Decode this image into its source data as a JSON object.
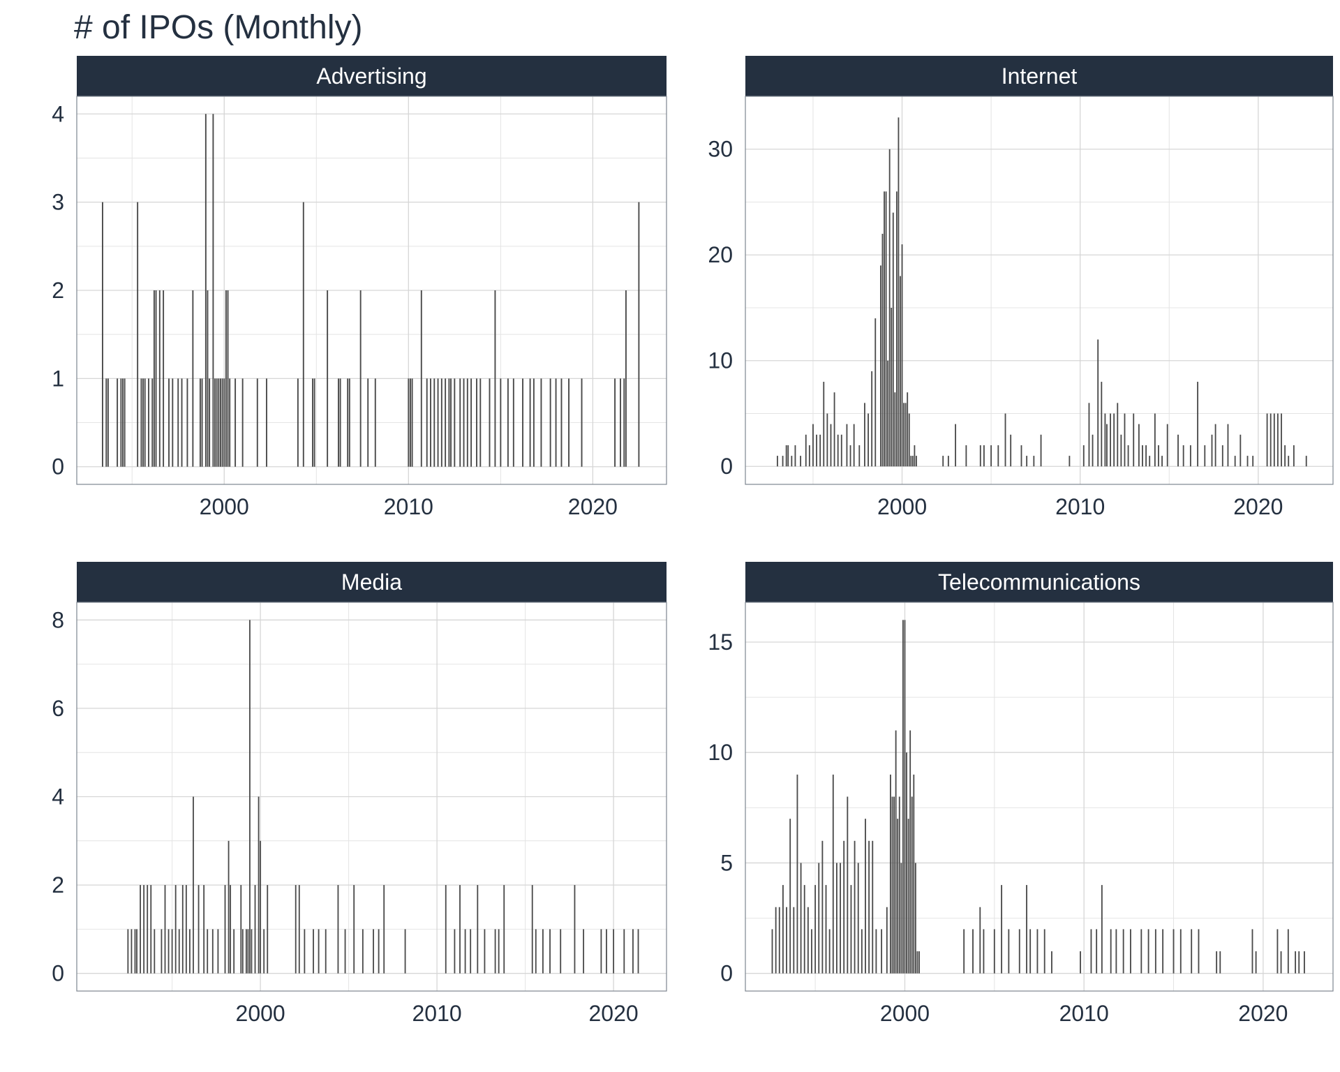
{
  "title": "# of IPOs (Monthly)",
  "colors": {
    "strip": "#243040",
    "strip_text": "#ffffff",
    "bar": "#4a4a4a",
    "grid": "#d6d6d6",
    "text": "#243040"
  },
  "chart_data": [
    {
      "type": "bar",
      "facet": "Advertising",
      "xlabel": "",
      "ylabel": "",
      "xlim": [
        1992.0,
        2024.0
      ],
      "ylim": [
        -0.2,
        4.2
      ],
      "xticks": [
        2000,
        2010,
        2020
      ],
      "yticks": [
        0,
        1,
        2,
        3,
        4
      ],
      "x": [
        1993.4,
        1993.6,
        1993.7,
        1994.2,
        1994.4,
        1994.5,
        1994.6,
        1995.3,
        1995.5,
        1995.6,
        1995.7,
        1995.9,
        1996.1,
        1996.2,
        1996.3,
        1996.5,
        1996.7,
        1997.0,
        1997.2,
        1997.5,
        1997.7,
        1998.0,
        1998.3,
        1998.7,
        1998.8,
        1999.0,
        1999.1,
        1999.2,
        1999.4,
        1999.5,
        1999.6,
        1999.7,
        1999.8,
        1999.9,
        2000.0,
        2000.1,
        2000.2,
        2000.3,
        2000.6,
        2001.0,
        2001.8,
        2002.3,
        2004.0,
        2004.3,
        2004.8,
        2004.9,
        2005.6,
        2006.2,
        2006.3,
        2006.7,
        2006.8,
        2007.4,
        2007.8,
        2008.2,
        2010.0,
        2010.1,
        2010.2,
        2010.7,
        2011.0,
        2011.2,
        2011.4,
        2011.6,
        2011.8,
        2012.0,
        2012.2,
        2012.3,
        2012.5,
        2012.8,
        2013.0,
        2013.2,
        2013.4,
        2013.7,
        2013.9,
        2014.4,
        2014.7,
        2015.0,
        2015.4,
        2015.7,
        2016.2,
        2016.6,
        2016.8,
        2017.2,
        2017.7,
        2018.0,
        2018.3,
        2018.7,
        2019.4,
        2021.2,
        2021.5,
        2021.7,
        2021.8,
        2022.5
      ],
      "values": [
        3,
        1,
        1,
        1,
        1,
        1,
        1,
        3,
        1,
        1,
        1,
        1,
        1,
        2,
        2,
        2,
        2,
        1,
        1,
        1,
        1,
        1,
        2,
        1,
        1,
        4,
        2,
        1,
        4,
        1,
        1,
        1,
        1,
        1,
        1,
        2,
        2,
        1,
        1,
        1,
        1,
        1,
        1,
        3,
        1,
        1,
        2,
        1,
        1,
        1,
        1,
        2,
        1,
        1,
        1,
        1,
        1,
        2,
        1,
        1,
        1,
        1,
        1,
        1,
        1,
        1,
        1,
        1,
        1,
        1,
        1,
        1,
        1,
        1,
        2,
        1,
        1,
        1,
        1,
        1,
        1,
        1,
        1,
        1,
        1,
        1,
        1,
        1,
        1,
        1,
        2,
        3
      ]
    },
    {
      "type": "bar",
      "facet": "Internet",
      "xlabel": "",
      "ylabel": "",
      "xlim": [
        1991.2,
        2024.2
      ],
      "ylim": [
        -1.7,
        35.0
      ],
      "xticks": [
        2000,
        2010,
        2020
      ],
      "yticks": [
        0,
        10,
        20,
        30
      ],
      "x": [
        1993.0,
        1993.3,
        1993.5,
        1993.6,
        1993.8,
        1994.0,
        1994.3,
        1994.6,
        1994.8,
        1995.0,
        1995.2,
        1995.4,
        1995.6,
        1995.8,
        1996.0,
        1996.2,
        1996.4,
        1996.6,
        1996.9,
        1997.1,
        1997.3,
        1997.6,
        1997.9,
        1998.1,
        1998.3,
        1998.5,
        1998.8,
        1998.9,
        1999.0,
        1999.1,
        1999.2,
        1999.3,
        1999.4,
        1999.5,
        1999.6,
        1999.7,
        1999.8,
        1999.9,
        2000.0,
        2000.1,
        2000.2,
        2000.3,
        2000.4,
        2000.5,
        2000.6,
        2000.7,
        2000.8,
        2002.3,
        2002.6,
        2003.0,
        2003.6,
        2004.4,
        2004.6,
        2005.0,
        2005.4,
        2005.8,
        2006.1,
        2006.7,
        2007.0,
        2007.4,
        2007.8,
        2009.4,
        2010.2,
        2010.5,
        2010.7,
        2011.0,
        2011.2,
        2011.4,
        2011.5,
        2011.7,
        2011.9,
        2012.1,
        2012.3,
        2012.5,
        2012.7,
        2013.0,
        2013.3,
        2013.5,
        2013.7,
        2013.9,
        2014.2,
        2014.4,
        2014.6,
        2014.9,
        2015.5,
        2015.8,
        2016.2,
        2016.6,
        2017.0,
        2017.4,
        2017.6,
        2018.0,
        2018.3,
        2018.7,
        2019.0,
        2019.4,
        2019.7,
        2020.5,
        2020.7,
        2020.9,
        2021.1,
        2021.3,
        2021.5,
        2021.7,
        2022.0,
        2022.7
      ],
      "values": [
        1,
        1,
        2,
        2,
        1,
        2,
        1,
        3,
        2,
        4,
        3,
        3,
        8,
        5,
        4,
        7,
        3,
        3,
        4,
        2,
        4,
        2,
        6,
        5,
        9,
        14,
        19,
        22,
        26,
        26,
        10,
        30,
        15,
        24,
        7,
        26,
        33,
        18,
        21,
        6,
        6,
        7,
        5,
        1,
        1,
        2,
        1,
        1,
        1,
        4,
        2,
        2,
        2,
        2,
        2,
        5,
        3,
        2,
        1,
        1,
        3,
        1,
        2,
        6,
        3,
        12,
        8,
        5,
        4,
        5,
        5,
        6,
        3,
        5,
        2,
        5,
        4,
        2,
        2,
        1,
        5,
        2,
        1,
        4,
        3,
        2,
        2,
        8,
        2,
        3,
        4,
        2,
        4,
        1,
        3,
        1,
        1,
        5,
        5,
        5,
        5,
        5,
        2,
        1,
        2,
        1
      ]
    },
    {
      "type": "bar",
      "facet": "Media",
      "xlabel": "",
      "ylabel": "",
      "xlim": [
        1989.6,
        2023.0
      ],
      "ylim": [
        -0.4,
        8.4
      ],
      "xticks": [
        2000,
        2010,
        2020
      ],
      "yticks": [
        0,
        2,
        4,
        6,
        8
      ],
      "x": [
        1992.5,
        1992.7,
        1992.9,
        1993.0,
        1993.2,
        1993.4,
        1993.6,
        1993.8,
        1994.0,
        1994.4,
        1994.6,
        1994.8,
        1995.0,
        1995.2,
        1995.4,
        1995.6,
        1995.8,
        1996.0,
        1996.2,
        1996.5,
        1996.8,
        1997.0,
        1997.3,
        1997.6,
        1998.0,
        1998.2,
        1998.3,
        1998.5,
        1998.9,
        1999.0,
        1999.2,
        1999.3,
        1999.4,
        1999.5,
        1999.7,
        1999.9,
        2000.0,
        2000.2,
        2000.4,
        2002.0,
        2002.2,
        2002.5,
        2003.0,
        2003.3,
        2003.7,
        2004.4,
        2004.8,
        2005.3,
        2005.8,
        2006.4,
        2006.7,
        2007.0,
        2008.2,
        2010.5,
        2011.0,
        2011.3,
        2011.6,
        2011.9,
        2012.3,
        2012.7,
        2013.3,
        2013.5,
        2013.8,
        2015.4,
        2015.6,
        2016.0,
        2016.4,
        2017.0,
        2017.8,
        2018.3,
        2019.3,
        2019.6,
        2020.0,
        2020.6,
        2021.1,
        2021.4
      ],
      "values": [
        1,
        1,
        1,
        1,
        2,
        2,
        2,
        2,
        1,
        1,
        2,
        1,
        1,
        2,
        1,
        2,
        2,
        1,
        4,
        2,
        2,
        1,
        1,
        1,
        2,
        3,
        2,
        1,
        2,
        1,
        1,
        1,
        8,
        1,
        2,
        4,
        3,
        1,
        2,
        2,
        2,
        1,
        1,
        1,
        1,
        2,
        1,
        2,
        1,
        1,
        1,
        2,
        1,
        2,
        1,
        2,
        1,
        1,
        2,
        1,
        1,
        1,
        2,
        2,
        1,
        1,
        1,
        1,
        2,
        1,
        1,
        1,
        1,
        1,
        1,
        1
      ]
    },
    {
      "type": "bar",
      "facet": "Telecommunications",
      "xlabel": "",
      "ylabel": "",
      "xlim": [
        1991.1,
        2023.9
      ],
      "ylim": [
        -0.8,
        16.8
      ],
      "xticks": [
        2000,
        2010,
        2020
      ],
      "yticks": [
        0,
        5,
        10,
        15
      ],
      "x": [
        1992.6,
        1992.8,
        1993.0,
        1993.2,
        1993.4,
        1993.6,
        1993.8,
        1994.0,
        1994.2,
        1994.4,
        1994.6,
        1994.8,
        1995.0,
        1995.2,
        1995.4,
        1995.6,
        1995.8,
        1996.0,
        1996.2,
        1996.4,
        1996.6,
        1996.8,
        1997.0,
        1997.2,
        1997.4,
        1997.6,
        1997.8,
        1998.0,
        1998.2,
        1998.4,
        1998.7,
        1999.0,
        1999.2,
        1999.3,
        1999.4,
        1999.5,
        1999.6,
        1999.7,
        1999.8,
        1999.9,
        2000.0,
        2000.1,
        2000.2,
        2000.3,
        2000.4,
        2000.5,
        2000.6,
        2000.7,
        2000.8,
        2003.3,
        2003.8,
        2004.2,
        2004.4,
        2005.0,
        2005.4,
        2005.8,
        2006.4,
        2006.8,
        2007.0,
        2007.4,
        2007.8,
        2008.2,
        2009.8,
        2010.4,
        2010.7,
        2011.0,
        2011.5,
        2011.8,
        2012.2,
        2012.6,
        2013.2,
        2013.6,
        2014.0,
        2014.4,
        2015.0,
        2015.4,
        2016.0,
        2016.4,
        2017.4,
        2017.6,
        2019.4,
        2019.6,
        2020.8,
        2021.0,
        2021.4,
        2021.8,
        2022.0,
        2022.3
      ],
      "values": [
        2,
        3,
        3,
        4,
        3,
        7,
        3,
        9,
        5,
        4,
        3,
        2,
        4,
        5,
        6,
        4,
        2,
        9,
        5,
        5,
        6,
        8,
        4,
        6,
        5,
        2,
        7,
        6,
        6,
        2,
        2,
        3,
        9,
        8,
        8,
        11,
        7,
        8,
        5,
        16,
        16,
        10,
        7,
        11,
        8,
        9,
        5,
        1,
        1,
        2,
        2,
        3,
        2,
        2,
        4,
        2,
        2,
        4,
        2,
        2,
        2,
        1,
        1,
        2,
        2,
        4,
        2,
        2,
        2,
        2,
        2,
        2,
        2,
        2,
        2,
        2,
        2,
        2,
        1,
        1,
        2,
        1,
        2,
        1,
        2,
        1,
        1,
        1
      ]
    }
  ]
}
